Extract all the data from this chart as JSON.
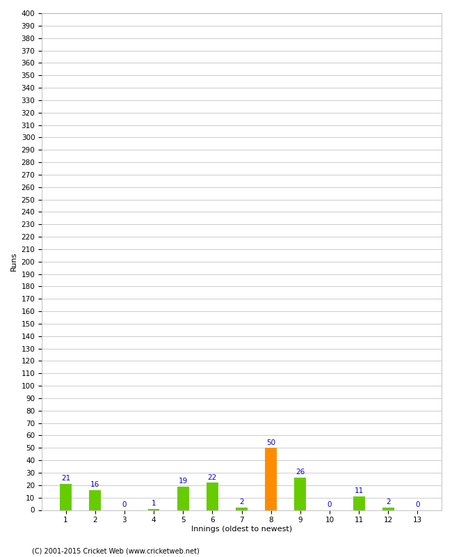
{
  "title": "",
  "xlabel": "Innings (oldest to newest)",
  "ylabel": "Runs",
  "categories": [
    1,
    2,
    3,
    4,
    5,
    6,
    7,
    8,
    9,
    10,
    11,
    12,
    13
  ],
  "values": [
    21,
    16,
    0,
    1,
    19,
    22,
    2,
    50,
    26,
    0,
    11,
    2,
    0
  ],
  "bar_colors": [
    "#66cc00",
    "#66cc00",
    "#66cc00",
    "#66cc00",
    "#66cc00",
    "#66cc00",
    "#66cc00",
    "#ff8c00",
    "#66cc00",
    "#66cc00",
    "#66cc00",
    "#66cc00",
    "#66cc00"
  ],
  "ylim": [
    0,
    400
  ],
  "label_color": "#0000cc",
  "grid_color": "#cccccc",
  "background_color": "#ffffff",
  "footer": "(C) 2001-2015 Cricket Web (www.cricketweb.net)",
  "label_fontsize": 7.5,
  "axis_tick_fontsize": 7.5,
  "axis_label_fontsize": 8,
  "bar_width": 0.4
}
